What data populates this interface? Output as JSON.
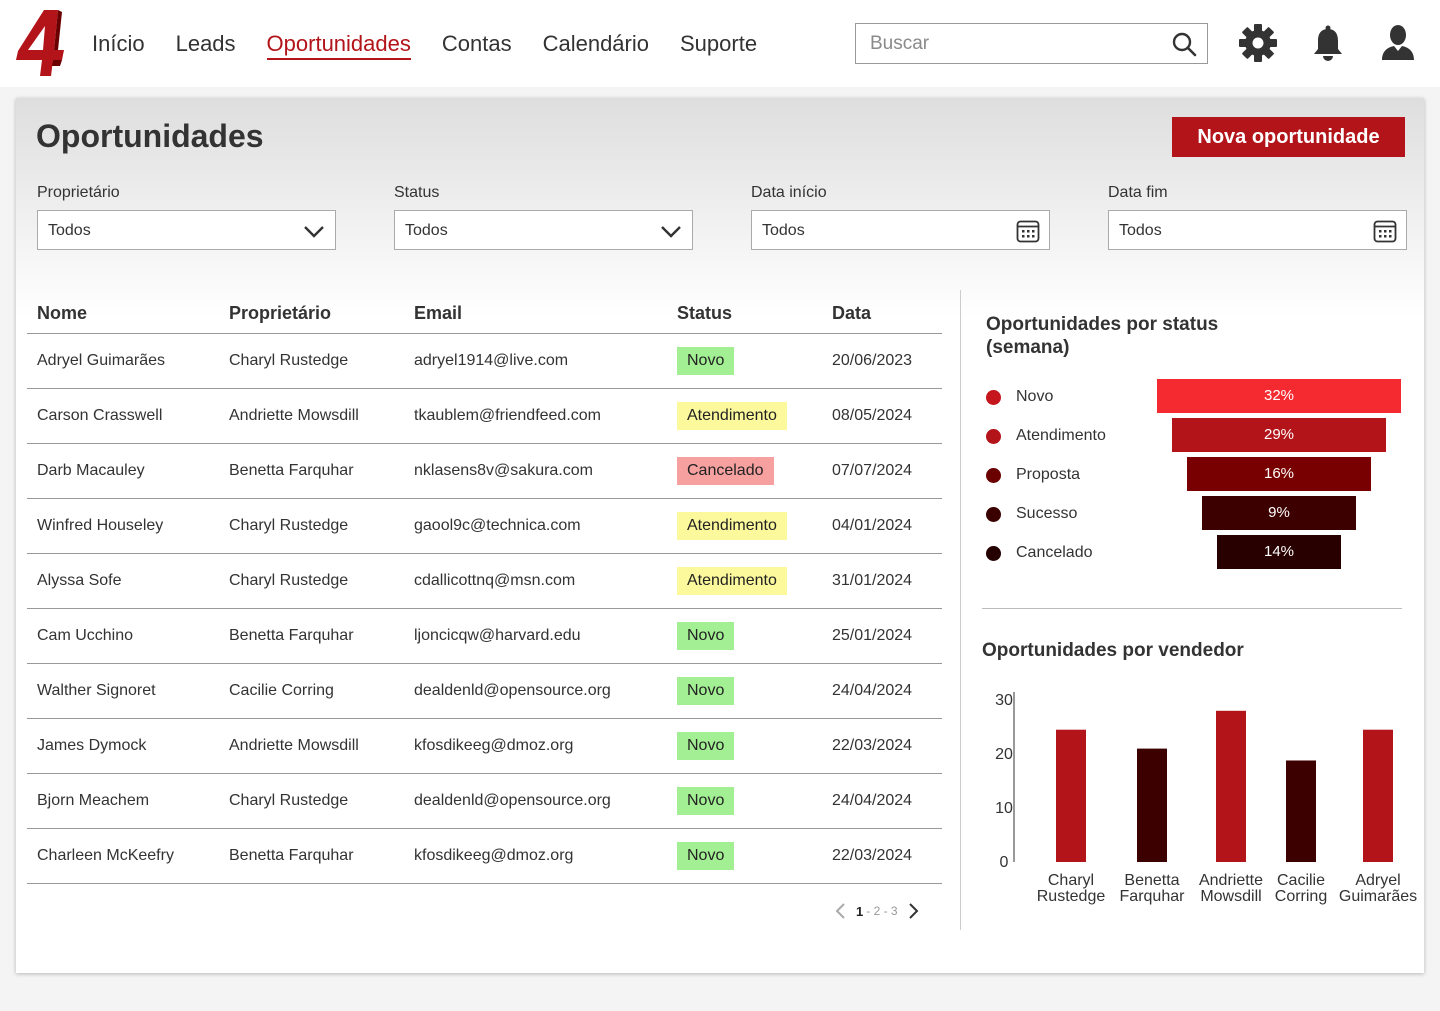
{
  "nav": {
    "items": [
      {
        "label": "Início"
      },
      {
        "label": "Leads"
      },
      {
        "label": "Oportunidades"
      },
      {
        "label": "Contas"
      },
      {
        "label": "Calendário"
      },
      {
        "label": "Suporte"
      }
    ],
    "active_index": 2,
    "search_placeholder": "Buscar"
  },
  "page": {
    "title": "Oportunidades",
    "new_button": "Nova oportunidade"
  },
  "filters": [
    {
      "label": "Proprietário",
      "value": "Todos",
      "icon": "chevron-down-icon"
    },
    {
      "label": "Status",
      "value": "Todos",
      "icon": "chevron-down-icon"
    },
    {
      "label": "Data início",
      "value": "Todos",
      "icon": "calendar-icon"
    },
    {
      "label": "Data fim",
      "value": "Todos",
      "icon": "calendar-icon"
    }
  ],
  "table": {
    "columns": [
      "Nome",
      "Proprietário",
      "Email",
      "Status",
      "Data"
    ],
    "rows": [
      {
        "name": "Adryel Guimarães",
        "owner": "Charyl Rustedge",
        "email": "adryel1914@live.com",
        "status": "Novo",
        "date": "20/06/2023"
      },
      {
        "name": "Carson Crasswell",
        "owner": "Andriette Mowsdill",
        "email": "tkaublem@friendfeed.com",
        "status": "Atendimento",
        "date": "08/05/2024"
      },
      {
        "name": "Darb Macauley",
        "owner": "Benetta Farquhar",
        "email": "nklasens8v@sakura.com",
        "status": "Cancelado",
        "date": "07/07/2024"
      },
      {
        "name": "Winfred Houseley",
        "owner": "Charyl Rustedge",
        "email": "gaool9c@technica.com",
        "status": "Atendimento",
        "date": "04/01/2024"
      },
      {
        "name": "Alyssa Sofe",
        "owner": "Charyl Rustedge",
        "email": "cdallicottnq@msn.com",
        "status": "Atendimento",
        "date": "31/01/2024"
      },
      {
        "name": "Cam Ucchino",
        "owner": "Benetta Farquhar",
        "email": "ljoncicqw@harvard.edu",
        "status": "Novo",
        "date": "25/01/2024"
      },
      {
        "name": "Walther Signoret",
        "owner": "Cacilie Corring",
        "email": "dealdenld@opensource.org",
        "status": "Novo",
        "date": "24/04/2024"
      },
      {
        "name": "James Dymock",
        "owner": "Andriette Mowsdill",
        "email": "kfosdikeeg@dmoz.org",
        "status": "Novo",
        "date": "22/03/2024"
      },
      {
        "name": "Bjorn Meachem",
        "owner": "Charyl Rustedge",
        "email": "dealdenld@opensource.org",
        "status": "Novo",
        "date": "24/04/2024"
      },
      {
        "name": "Charleen McKeefry",
        "owner": "Benetta Farquhar",
        "email": "kfosdikeeg@dmoz.org",
        "status": "Novo",
        "date": "22/03/2024"
      }
    ]
  },
  "pagination": {
    "current": "1",
    "rest": "- 2 - 3"
  },
  "status_colors": {
    "Novo": "#a3ef93",
    "Atendimento": "#fbf99c",
    "Cancelado": "#f6a0a0"
  },
  "chart_data": [
    {
      "type": "bar",
      "title": "Oportunidades por status (semana)",
      "categories": [
        "Novo",
        "Atendimento",
        "Proposta",
        "Sucesso",
        "Cancelado"
      ],
      "values": [
        32,
        29,
        16,
        9,
        14
      ],
      "value_labels": [
        "32%",
        "29%",
        "16%",
        "9%",
        "14%"
      ],
      "colors": [
        "#f52a30",
        "#b3141a",
        "#780000",
        "#3d0000",
        "#280000"
      ],
      "dot_colors": [
        "#c4161c",
        "#b3141a",
        "#6b0000",
        "#3a0000",
        "#250000"
      ],
      "orientation": "horizontal-funnel",
      "legend": "left"
    },
    {
      "type": "bar",
      "title": "Oportunidades por vendedor",
      "categories": [
        "Charyl Rustedge",
        "Benetta Farquhar",
        "Andriette Mowsdill",
        "Cacilie Corring",
        "Adryel Guimarães"
      ],
      "values": [
        24.5,
        21,
        28,
        18.8,
        24.5
      ],
      "colors": [
        "#b3141a",
        "#3d0000",
        "#b3141a",
        "#3d0000",
        "#b3141a"
      ],
      "ylim": [
        0,
        30
      ],
      "yticks": [
        0,
        10,
        20,
        30
      ],
      "xlabel": "",
      "ylabel": "",
      "grid": false
    }
  ]
}
